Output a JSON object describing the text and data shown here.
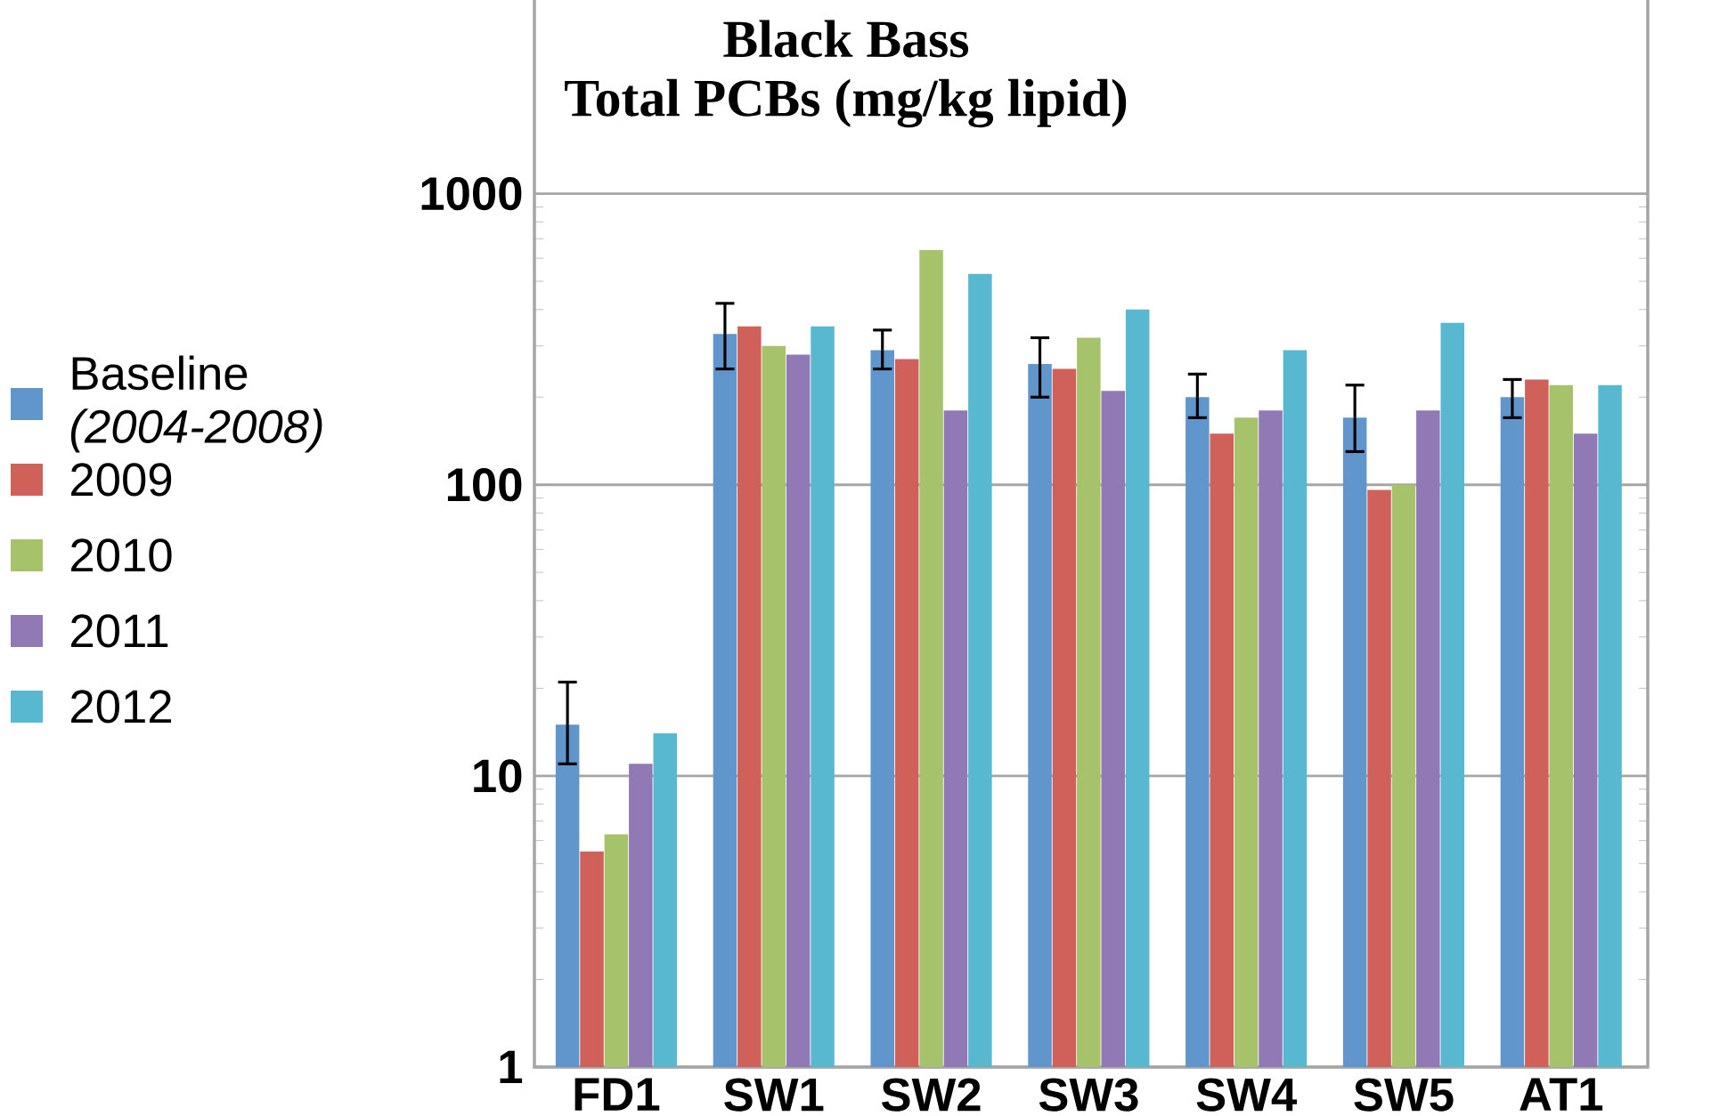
{
  "chart_data": {
    "type": "bar",
    "title": "Black Bass",
    "subtitle": "Total PCBs (mg/kg lipid)",
    "categories": [
      "FD1",
      "SW1",
      "SW2",
      "SW3",
      "SW4",
      "SW5",
      "AT1"
    ],
    "log": true,
    "ylim": [
      1,
      5000
    ],
    "yticks": [
      1,
      10,
      100,
      1000
    ],
    "grid": "y",
    "legend": "left",
    "series": [
      {
        "name": "Baseline *(2004-2008)*",
        "color": "#6096cc",
        "values": [
          15,
          330,
          290,
          260,
          200,
          170,
          200
        ],
        "errors": [
          [
            11,
            21
          ],
          [
            250,
            420
          ],
          [
            250,
            340
          ],
          [
            200,
            320
          ],
          [
            170,
            240
          ],
          [
            130,
            220
          ],
          [
            170,
            230
          ]
        ]
      },
      {
        "name": "2009",
        "color": "#d0605a",
        "values": [
          5.5,
          350,
          270,
          250,
          150,
          96,
          230
        ]
      },
      {
        "name": "2010",
        "color": "#a6c26a",
        "values": [
          6.3,
          300,
          640,
          320,
          170,
          100,
          220
        ]
      },
      {
        "name": "2011",
        "color": "#9179b5",
        "values": [
          11,
          280,
          180,
          210,
          180,
          180,
          150
        ]
      },
      {
        "name": "2012",
        "color": "#58b8d0",
        "values": [
          14,
          350,
          530,
          400,
          290,
          360,
          220
        ]
      }
    ]
  }
}
